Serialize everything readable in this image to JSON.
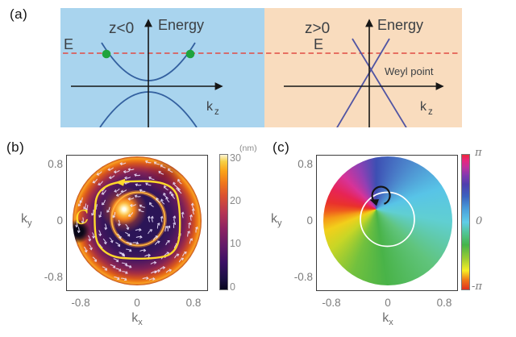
{
  "panels": {
    "a": {
      "label": "(a)",
      "left": {
        "region": "z<0",
        "energy": "Energy",
        "fermi": "E",
        "k_base": "k",
        "k_sub": "z"
      },
      "right": {
        "region": "z>0",
        "energy": "Energy",
        "fermi": "E",
        "weyl": "Weyl point",
        "k_base": "k",
        "k_sub": "z"
      }
    },
    "b": {
      "label": "(b)",
      "ylabel_base": "k",
      "ylabel_sub": "y",
      "xlabel_base": "k",
      "xlabel_sub": "x",
      "yticks": [
        "0.8",
        "0",
        "-0.8"
      ],
      "xticks": [
        "-0.8",
        "0",
        "0.8"
      ],
      "colorbar": {
        "unit": "(nm)",
        "ticks": [
          "30",
          "20",
          "10",
          "0"
        ]
      },
      "contour_label": "C"
    },
    "c": {
      "label": "(c)",
      "ylabel_base": "k",
      "ylabel_sub": "y",
      "xlabel_base": "k",
      "xlabel_sub": "x",
      "yticks": [
        "0.8",
        "0",
        "-0.8"
      ],
      "xticks": [
        "-0.8",
        "0",
        "0.8"
      ],
      "colorbar": {
        "ticks": [
          "π",
          "0",
          "-π"
        ]
      }
    }
  },
  "colors": {
    "panel_a_left_bg": "#a9d4ee",
    "panel_a_right_bg": "#f9dcbe",
    "band_curve": "#33609f",
    "weyl_cone": "#5155a3",
    "fermi_dashed_line": "#e14b44",
    "fermi_crossing_dots": "#1ea33c",
    "contour_loop": "#ffd92b",
    "vector_arrows": "#ece4ff"
  },
  "chart_data": [
    {
      "type": "diagram",
      "panel": "a",
      "description": "Band dispersion schematics versus k_z on either side of an interface",
      "left_region": {
        "label": "z<0",
        "bands": "gapped parabolic bands (hyperbolic gap)",
        "fermi_level": "E dashed line crossing upper band at two points (green dots)"
      },
      "right_region": {
        "label": "z>0",
        "bands": "linear crossing bands forming a Weyl cone",
        "annotation": "Weyl point located between Fermi level E and k_z axis"
      }
    },
    {
      "type": "heatmap",
      "panel": "b",
      "title": "",
      "xlabel": "k_x",
      "ylabel": "k_y",
      "xlim": [
        -1,
        1
      ],
      "ylim": [
        -1,
        1
      ],
      "xticks": [
        -0.8,
        0,
        0.8
      ],
      "yticks": [
        -0.8,
        0,
        0.8
      ],
      "colorbar": {
        "label": "(nm)",
        "ticks": [
          0,
          10,
          20,
          30
        ],
        "range": [
          0,
          30
        ],
        "colormap": "inferno-like (dark purple to orange to white)"
      },
      "content": "disk of radius ~0.92 in k-space; bright orange rim ~20-30 nm, dark purple interior ~0-5 nm, bright white-yellow spot near (-0.18, 0.17), bright ring of radius ~0.38 centered near origin, dark spot at (-0.85, -0.15), white swirling tangential arrow field (counterclockwise vortex), yellow closed contour C (rounded square, half-width ~0.6) traversed counterclockwise"
    },
    {
      "type": "heatmap",
      "panel": "c",
      "title": "",
      "xlabel": "k_x",
      "ylabel": "k_y",
      "xlim": [
        -1,
        1
      ],
      "ylim": [
        -1,
        1
      ],
      "xticks": [
        -0.8,
        0,
        0.8
      ],
      "yticks": [
        -0.8,
        0,
        0.8
      ],
      "colorbar": {
        "ticks": [
          "-π",
          "0",
          "π"
        ],
        "range": [
          "-π",
          "π"
        ],
        "colormap": "cyclic HSV (red→yellow→green→cyan→blue→magenta→red)"
      },
      "content": "phase map on same disk: hue winds once (winding number +1) around a vortex at ~(-0.17, 0.16) marked by a black counterclockwise circular arrow; white reference circle of radius ~0.38; phase 0 (cyan) toward +k_x, ±π (red) toward -k_x"
    }
  ]
}
